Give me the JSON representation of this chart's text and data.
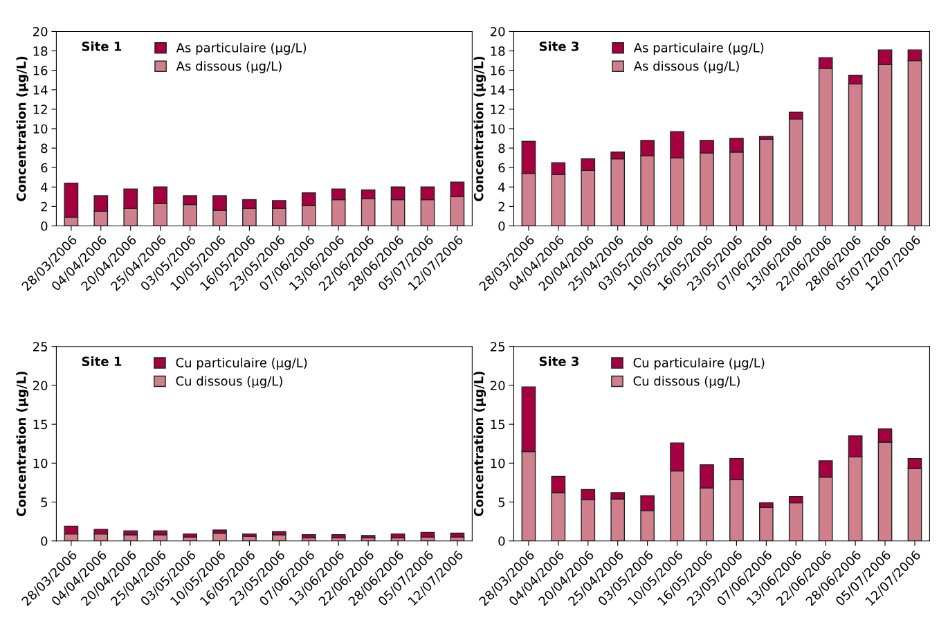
{
  "chart_data": [
    {
      "type": "bar",
      "stacked": true,
      "ylabel": "Concentration (µg/L)",
      "annotations": [
        "Site 1"
      ],
      "categories": [
        "28/03/2006",
        "04/04/2006",
        "20/04/2006",
        "25/04/2006",
        "03/05/2006",
        "10/05/2006",
        "16/05/2006",
        "23/05/2006",
        "07/06/2006",
        "13/06/2006",
        "22/06/2006",
        "28/06/2006",
        "05/07/2006",
        "12/07/2006"
      ],
      "ylim": [
        0,
        20
      ],
      "yticks": [
        0,
        2,
        4,
        6,
        8,
        10,
        12,
        14,
        16,
        18,
        20
      ],
      "grid": false,
      "legend": "top",
      "series": [
        {
          "name": "As dissous (µg/L)",
          "color": "#d0808c",
          "values": [
            0.9,
            1.5,
            1.8,
            2.3,
            2.2,
            1.6,
            1.8,
            1.8,
            2.1,
            2.7,
            2.8,
            2.7,
            2.7,
            3.0
          ]
        },
        {
          "name": "As particulaire (µg/L)",
          "color": "#a5003f",
          "values": [
            3.5,
            1.6,
            2.0,
            1.7,
            0.9,
            1.5,
            0.9,
            0.8,
            1.3,
            1.1,
            0.9,
            1.3,
            1.3,
            1.5
          ]
        }
      ]
    },
    {
      "type": "bar",
      "stacked": true,
      "ylabel": "Concentration (µg/L)",
      "annotations": [
        "Site 3"
      ],
      "categories": [
        "28/03/2006",
        "04/04/2006",
        "20/04/2006",
        "25/04/2006",
        "03/05/2006",
        "10/05/2006",
        "16/05/2006",
        "23/05/2006",
        "07/06/2006",
        "13/06/2006",
        "22/06/2006",
        "28/06/2006",
        "05/07/2006",
        "12/07/2006"
      ],
      "ylim": [
        0,
        20
      ],
      "yticks": [
        0,
        2,
        4,
        6,
        8,
        10,
        12,
        14,
        16,
        18,
        20
      ],
      "grid": false,
      "legend": "top",
      "series": [
        {
          "name": "As dissous (µg/L)",
          "color": "#d0808c",
          "values": [
            5.4,
            5.3,
            5.7,
            6.9,
            7.2,
            7.0,
            7.5,
            7.6,
            8.9,
            11.0,
            16.2,
            14.6,
            16.6,
            17.0
          ]
        },
        {
          "name": "As particulaire (µg/L)",
          "color": "#a5003f",
          "values": [
            3.3,
            1.2,
            1.2,
            0.7,
            1.6,
            2.7,
            1.3,
            1.4,
            0.3,
            0.7,
            1.1,
            0.9,
            1.5,
            1.1
          ]
        }
      ]
    },
    {
      "type": "bar",
      "stacked": true,
      "ylabel": "Concentration (µg/L)",
      "annotations": [
        "Site 1"
      ],
      "categories": [
        "28/03/2006",
        "04/04/2006",
        "20/04/2006",
        "25/04/2006",
        "03/05/2006",
        "10/05/2006",
        "16/05/2006",
        "23/05/2006",
        "07/06/2006",
        "13/06/2006",
        "22/06/2006",
        "28/06/2006",
        "05/07/2006",
        "12/07/2006"
      ],
      "ylim": [
        0,
        25
      ],
      "yticks": [
        0,
        5,
        10,
        15,
        20,
        25
      ],
      "grid": false,
      "legend": "top",
      "series": [
        {
          "name": "Cu dissous (µg/L)",
          "color": "#d0808c",
          "values": [
            0.9,
            0.9,
            0.8,
            0.8,
            0.5,
            1.0,
            0.6,
            0.8,
            0.4,
            0.4,
            0.4,
            0.4,
            0.5,
            0.5
          ]
        },
        {
          "name": "Cu particulaire (µg/L)",
          "color": "#a5003f",
          "values": [
            1.0,
            0.6,
            0.5,
            0.5,
            0.4,
            0.4,
            0.3,
            0.4,
            0.4,
            0.4,
            0.3,
            0.5,
            0.6,
            0.5
          ]
        }
      ]
    },
    {
      "type": "bar",
      "stacked": true,
      "ylabel": "Concentration (µg/L)",
      "annotations": [
        "Site 3"
      ],
      "categories": [
        "28/03/2006",
        "04/04/2006",
        "20/04/2006",
        "25/04/2006",
        "03/05/2006",
        "10/05/2006",
        "16/05/2006",
        "23/05/2006",
        "07/06/2006",
        "13/06/2006",
        "22/06/2006",
        "28/06/2006",
        "05/07/2006",
        "12/07/2006"
      ],
      "ylim": [
        0,
        25
      ],
      "yticks": [
        0,
        5,
        10,
        15,
        20,
        25
      ],
      "grid": false,
      "legend": "top",
      "series": [
        {
          "name": "Cu dissous (µg/L)",
          "color": "#d0808c",
          "values": [
            11.5,
            6.2,
            5.3,
            5.4,
            3.9,
            9.0,
            6.8,
            7.9,
            4.3,
            4.9,
            8.2,
            10.8,
            12.7,
            9.3
          ]
        },
        {
          "name": "Cu particulaire (µg/L)",
          "color": "#a5003f",
          "values": [
            8.3,
            2.1,
            1.3,
            0.8,
            1.9,
            3.6,
            3.0,
            2.7,
            0.6,
            0.8,
            2.1,
            2.7,
            1.7,
            1.3
          ]
        }
      ]
    }
  ]
}
